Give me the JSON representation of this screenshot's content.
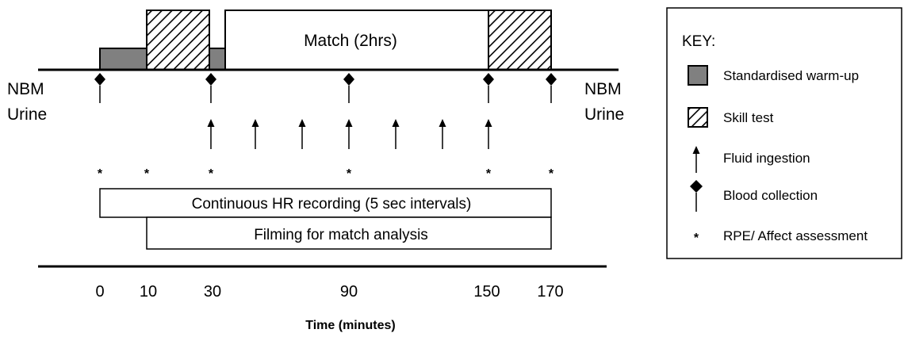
{
  "diagram": {
    "match_label": "Match (2hrs)",
    "left_labels": [
      "NBM",
      "Urine"
    ],
    "right_labels": [
      "NBM",
      "Urine"
    ],
    "hr_label": "Continuous HR recording (5 sec intervals)",
    "filming_label": "Filming for match analysis",
    "axis": {
      "title": "Time (minutes)",
      "ticks": [
        "0",
        "10",
        "30",
        "90",
        "150",
        "170"
      ]
    },
    "events": {
      "blood_collection_times": [
        0,
        27,
        90,
        150,
        170
      ],
      "fluid_ingestion_times": [
        27,
        47,
        67,
        90,
        110,
        130,
        150
      ],
      "rpe_times": [
        0,
        10,
        27,
        90,
        150,
        170
      ]
    }
  },
  "key": {
    "title": "KEY:",
    "items": [
      {
        "icon": "grey-box-icon",
        "label": "Standardised warm-up"
      },
      {
        "icon": "hatched-box-icon",
        "label": "Skill test"
      },
      {
        "icon": "arrow-up-icon",
        "label": "Fluid ingestion"
      },
      {
        "icon": "diamond-pin-icon",
        "label": "Blood collection"
      },
      {
        "icon": "asterisk-icon",
        "label": "RPE/ Affect assessment"
      }
    ]
  },
  "colors": {
    "warmup_fill": "#808080",
    "stroke": "#000000",
    "background": "#ffffff"
  }
}
